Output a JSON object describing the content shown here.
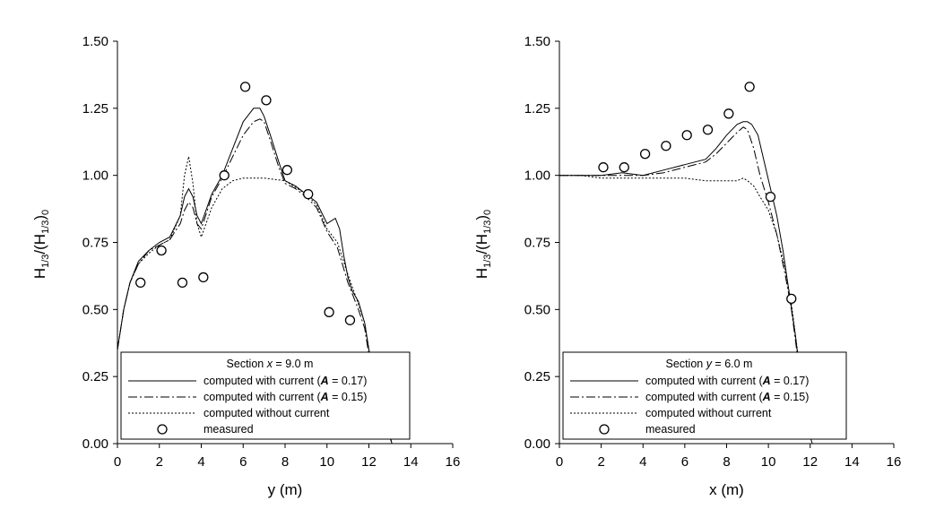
{
  "chart_data": [
    {
      "type": "line",
      "xlabel": "y (m)",
      "ylabel_main": "H",
      "ylabel_sub1": "1/3",
      "ylabel_mid": "/(H",
      "ylabel_sub2": "1/3",
      "ylabel_close": ")",
      "ylabel_sub3": "0",
      "xlim": [
        0,
        16
      ],
      "ylim": [
        0,
        1.5
      ],
      "xticks": [
        "0",
        "2",
        "4",
        "6",
        "8",
        "10",
        "12",
        "14",
        "16"
      ],
      "yticks": [
        "0.00",
        "0.25",
        "0.50",
        "0.75",
        "1.00",
        "1.25",
        "1.50"
      ],
      "legend": {
        "title_prefix": "Section ",
        "title_var": "x",
        "title_suffix": " = 9.0 m",
        "items": [
          {
            "prefix": "computed with current (",
            "var": "A",
            "suffix": " = 0.17)"
          },
          {
            "prefix": "computed with current (",
            "var": "A",
            "suffix": " = 0.15)"
          },
          {
            "prefix": "computed without current",
            "var": "",
            "suffix": ""
          },
          {
            "prefix": "measured",
            "var": "",
            "suffix": ""
          }
        ]
      },
      "series": [
        {
          "style": "solid",
          "x": [
            0,
            0.3,
            0.6,
            1.0,
            1.5,
            2.0,
            2.5,
            3.0,
            3.2,
            3.4,
            3.6,
            3.8,
            4.0,
            4.5,
            5.0,
            5.5,
            6.0,
            6.5,
            6.8,
            7.0,
            7.3,
            7.7,
            8.0,
            8.5,
            9.0,
            9.5,
            10.0,
            10.2,
            10.4,
            10.6,
            10.8,
            11.0,
            11.2,
            11.5,
            11.8,
            12.0,
            12.3,
            12.6,
            12.9,
            13.1
          ],
          "y": [
            0.35,
            0.5,
            0.6,
            0.68,
            0.72,
            0.75,
            0.77,
            0.85,
            0.92,
            0.95,
            0.92,
            0.85,
            0.82,
            0.93,
            1.0,
            1.1,
            1.2,
            1.25,
            1.25,
            1.22,
            1.15,
            1.05,
            0.98,
            0.96,
            0.93,
            0.9,
            0.82,
            0.83,
            0.84,
            0.8,
            0.7,
            0.62,
            0.57,
            0.53,
            0.45,
            0.35,
            0.25,
            0.15,
            0.06,
            0.0
          ]
        },
        {
          "style": "dashdot",
          "x": [
            0,
            0.3,
            0.6,
            1.0,
            1.5,
            2.0,
            2.5,
            3.0,
            3.2,
            3.4,
            3.6,
            3.8,
            4.0,
            4.5,
            5.0,
            5.5,
            6.0,
            6.5,
            6.8,
            7.0,
            7.3,
            7.7,
            8.0,
            8.5,
            9.0,
            9.5,
            10.0,
            10.5,
            11.0,
            11.5,
            11.8,
            12.0,
            12.3,
            12.6,
            12.9,
            13.1
          ],
          "y": [
            0.35,
            0.5,
            0.6,
            0.67,
            0.72,
            0.74,
            0.76,
            0.82,
            0.87,
            0.9,
            0.88,
            0.82,
            0.8,
            0.92,
            0.99,
            1.07,
            1.15,
            1.2,
            1.21,
            1.2,
            1.13,
            1.03,
            0.97,
            0.95,
            0.92,
            0.88,
            0.79,
            0.73,
            0.6,
            0.5,
            0.43,
            0.33,
            0.23,
            0.13,
            0.05,
            0.0
          ]
        },
        {
          "style": "dotted",
          "x": [
            0,
            0.3,
            0.6,
            1.0,
            1.5,
            2.0,
            2.5,
            3.0,
            3.2,
            3.4,
            3.6,
            3.8,
            4.0,
            4.5,
            5.0,
            5.5,
            6.0,
            7.0,
            8.0,
            9.0,
            9.5,
            10.0,
            10.5,
            11.0,
            11.5,
            11.8,
            12.0,
            12.3,
            12.6,
            12.9,
            13.1
          ],
          "y": [
            0.35,
            0.5,
            0.6,
            0.67,
            0.71,
            0.74,
            0.76,
            0.85,
            1.0,
            1.07,
            0.97,
            0.82,
            0.77,
            0.88,
            0.95,
            0.98,
            0.99,
            0.99,
            0.98,
            0.93,
            0.89,
            0.8,
            0.75,
            0.63,
            0.52,
            0.45,
            0.35,
            0.24,
            0.14,
            0.05,
            0.0
          ]
        }
      ],
      "measured": {
        "x": [
          1.1,
          2.1,
          3.1,
          4.1,
          5.1,
          6.1,
          7.1,
          8.1,
          9.1,
          10.1,
          11.1
        ],
        "y": [
          0.6,
          0.72,
          0.6,
          0.62,
          1.0,
          1.33,
          1.28,
          1.02,
          0.93,
          0.49,
          0.46
        ]
      }
    },
    {
      "type": "line",
      "xlabel": "x (m)",
      "ylabel_main": "H",
      "ylabel_sub1": "1/3",
      "ylabel_mid": "/(H",
      "ylabel_sub2": "1/3",
      "ylabel_close": ")",
      "ylabel_sub3": "0",
      "xlim": [
        0,
        16
      ],
      "ylim": [
        0,
        1.5
      ],
      "xticks": [
        "0",
        "2",
        "4",
        "6",
        "8",
        "10",
        "12",
        "14",
        "16"
      ],
      "yticks": [
        "0.00",
        "0.25",
        "0.50",
        "0.75",
        "1.00",
        "1.25",
        "1.50"
      ],
      "legend": {
        "title_prefix": "Section ",
        "title_var": "y",
        "title_suffix": " = 6.0 m",
        "items": [
          {
            "prefix": "computed with current (",
            "var": "A",
            "suffix": " = 0.17)"
          },
          {
            "prefix": "computed with current (",
            "var": "A",
            "suffix": " = 0.15)"
          },
          {
            "prefix": "computed without current",
            "var": "",
            "suffix": ""
          },
          {
            "prefix": "measured",
            "var": "",
            "suffix": ""
          }
        ]
      },
      "series": [
        {
          "style": "solid",
          "x": [
            0,
            1.0,
            2.0,
            3.0,
            4.0,
            5.0,
            6.0,
            6.5,
            7.0,
            7.5,
            8.0,
            8.5,
            8.8,
            9.0,
            9.2,
            9.5,
            9.8,
            10.1,
            10.4,
            10.7,
            11.0,
            11.3,
            11.6,
            11.9,
            12.1
          ],
          "y": [
            1.0,
            1.0,
            1.0,
            1.01,
            1.0,
            1.02,
            1.04,
            1.05,
            1.06,
            1.1,
            1.15,
            1.19,
            1.2,
            1.2,
            1.19,
            1.15,
            1.05,
            0.95,
            0.85,
            0.72,
            0.56,
            0.4,
            0.2,
            0.05,
            0.0
          ]
        },
        {
          "style": "dashdot",
          "x": [
            0,
            1.0,
            2.0,
            3.0,
            4.0,
            5.0,
            6.0,
            7.0,
            7.5,
            8.0,
            8.5,
            8.8,
            9.0,
            9.3,
            9.6,
            10.0,
            10.4,
            10.8,
            11.1,
            11.4,
            11.7,
            12.0
          ],
          "y": [
            1.0,
            1.0,
            1.0,
            1.0,
            1.0,
            1.01,
            1.03,
            1.05,
            1.08,
            1.12,
            1.16,
            1.18,
            1.17,
            1.1,
            1.0,
            0.9,
            0.78,
            0.63,
            0.5,
            0.32,
            0.15,
            0.02
          ]
        },
        {
          "style": "dotted",
          "x": [
            0,
            1.0,
            2.0,
            3.0,
            4.0,
            5.0,
            6.0,
            7.0,
            8.0,
            8.5,
            8.8,
            9.0,
            9.3,
            9.6,
            10.0,
            10.4,
            10.8,
            11.1,
            11.4,
            11.7,
            12.0
          ],
          "y": [
            1.0,
            1.0,
            0.99,
            0.99,
            0.99,
            0.99,
            0.99,
            0.98,
            0.98,
            0.98,
            0.99,
            0.98,
            0.96,
            0.92,
            0.87,
            0.78,
            0.65,
            0.52,
            0.34,
            0.16,
            0.02
          ]
        }
      ],
      "measured": {
        "x": [
          2.1,
          3.1,
          4.1,
          5.1,
          6.1,
          7.1,
          8.1,
          9.1,
          10.1,
          11.1
        ],
        "y": [
          1.03,
          1.03,
          1.08,
          1.11,
          1.15,
          1.17,
          1.23,
          1.33,
          0.92,
          0.54
        ]
      }
    }
  ]
}
